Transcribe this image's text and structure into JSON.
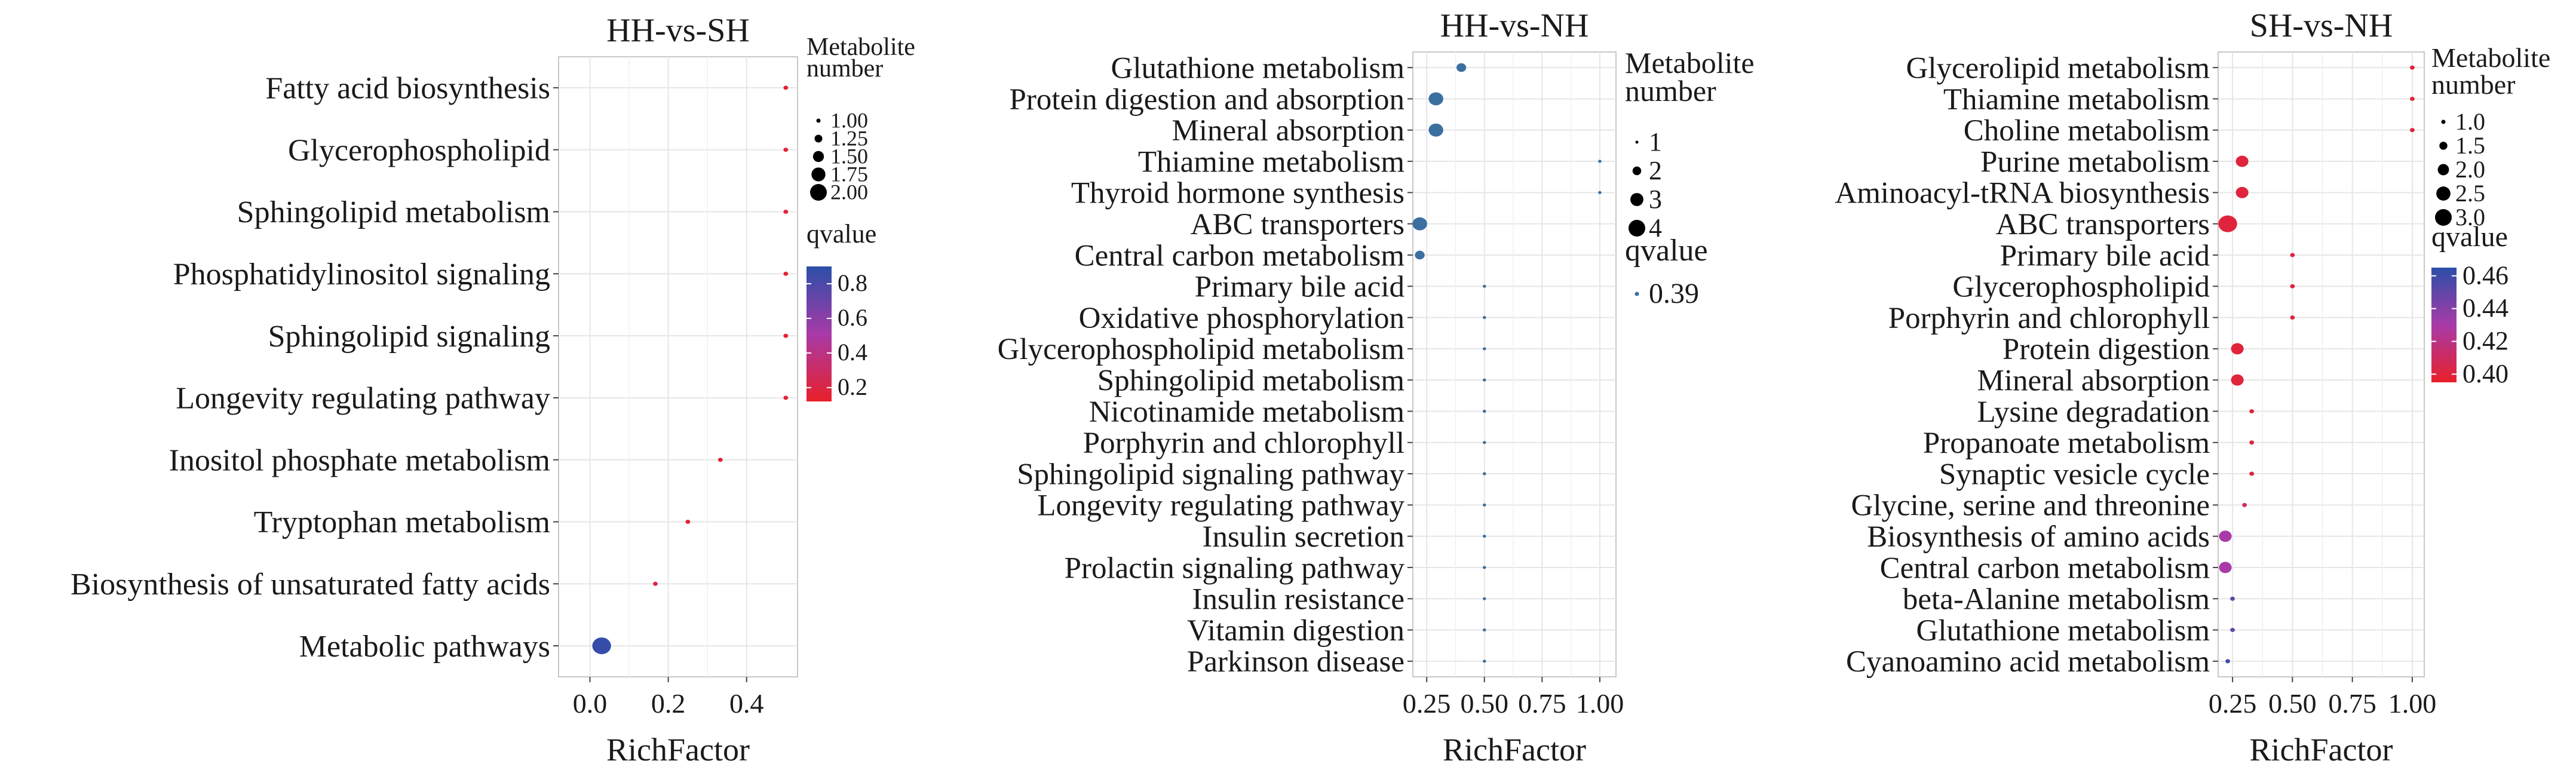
{
  "chart_data": [
    {
      "type": "scatter",
      "title": "HH-vs-SH",
      "xlabel": "RichFactor",
      "xlim": [
        -0.08,
        0.53
      ],
      "xticks": [
        0.0,
        0.2,
        0.4
      ],
      "xtick_labels": [
        "0.0",
        "0.2",
        "0.4"
      ],
      "grid": true,
      "legend_position": "right",
      "size_legend": {
        "title_lines": [
          "Metabolite",
          "number"
        ],
        "labels": [
          "1.00",
          "1.25",
          "1.50",
          "1.75",
          "2.00"
        ],
        "values": [
          1.0,
          1.25,
          1.5,
          1.75,
          2.0
        ]
      },
      "color_legend": {
        "title": "qvalue",
        "labels": [
          "0.8",
          "0.6",
          "0.4",
          "0.2"
        ],
        "values": [
          0.8,
          0.6,
          0.4,
          0.2
        ],
        "min": 0.12,
        "max": 0.9,
        "low_color": "#e8202a",
        "mid_color": "#a83aa8",
        "high_color": "#2b4fa8"
      },
      "categories": [
        "Fatty acid biosynthesis",
        "Glycerophospholipid",
        "Sphingolipid metabolism",
        "Phosphatidylinositol signaling",
        "Sphingolipid signaling",
        "Longevity regulating pathway",
        "Inositol phosphate metabolism",
        "Tryptophan metabolism",
        "Biosynthesis of unsaturated fatty acids",
        "Metabolic pathways"
      ],
      "points": [
        {
          "category": "Fatty acid biosynthesis",
          "x": 0.5,
          "size": 1,
          "q": 0.15
        },
        {
          "category": "Glycerophospholipid",
          "x": 0.5,
          "size": 1,
          "q": 0.15
        },
        {
          "category": "Sphingolipid metabolism",
          "x": 0.5,
          "size": 1,
          "q": 0.15
        },
        {
          "category": "Phosphatidylinositol signaling",
          "x": 0.5,
          "size": 1,
          "q": 0.15
        },
        {
          "category": "Sphingolipid signaling",
          "x": 0.5,
          "size": 1,
          "q": 0.15
        },
        {
          "category": "Longevity regulating pathway",
          "x": 0.5,
          "size": 1,
          "q": 0.15
        },
        {
          "category": "Inositol phosphate metabolism",
          "x": 0.333,
          "size": 1,
          "q": 0.16
        },
        {
          "category": "Tryptophan metabolism",
          "x": 0.25,
          "size": 1,
          "q": 0.17
        },
        {
          "category": "Biosynthesis of unsaturated fatty acids",
          "x": 0.167,
          "size": 1,
          "q": 0.2
        },
        {
          "category": "Metabolic pathways",
          "x": 0.03,
          "size": 2,
          "q": 0.87
        }
      ]
    },
    {
      "type": "scatter",
      "title": "HH-vs-NH",
      "xlabel": "RichFactor",
      "xlim": [
        0.19,
        1.07
      ],
      "xticks": [
        0.25,
        0.5,
        0.75,
        1.0
      ],
      "xtick_labels": [
        "0.25",
        "0.50",
        "0.75",
        "1.00"
      ],
      "grid": true,
      "legend_position": "right",
      "size_legend": {
        "title_lines": [
          "Metabolite",
          "number"
        ],
        "labels": [
          "1",
          "2",
          "3",
          "4"
        ],
        "values": [
          1,
          2,
          3,
          4
        ]
      },
      "color_legend": {
        "title": "qvalue",
        "labels": [
          "0.39"
        ],
        "values": [
          0.39
        ],
        "single_color": "#3b6fa0"
      },
      "categories": [
        "Glutathione metabolism",
        "Protein digestion and absorption",
        "Mineral absorption",
        "Thiamine metabolism",
        "Thyroid hormone synthesis",
        "ABC transporters",
        "Central carbon metabolism",
        "Primary bile acid",
        "Oxidative phosphorylation",
        "Glycerophospholipid metabolism",
        "Sphingolipid metabolism",
        "Nicotinamide metabolism",
        "Porphyrin and chlorophyll",
        "Sphingolipid signaling pathway",
        "Longevity regulating pathway",
        "Insulin secretion",
        "Prolactin signaling pathway",
        "Insulin resistance",
        "Vitamin digestion",
        "Parkinson disease"
      ],
      "points": [
        {
          "category": "Glutathione metabolism",
          "x": 0.4,
          "size": 2
        },
        {
          "category": "Protein digestion and absorption",
          "x": 0.29,
          "size": 3
        },
        {
          "category": "Mineral absorption",
          "x": 0.29,
          "size": 3
        },
        {
          "category": "Thiamine metabolism",
          "x": 1.0,
          "size": 1
        },
        {
          "category": "Thyroid hormone synthesis",
          "x": 1.0,
          "size": 1
        },
        {
          "category": "ABC transporters",
          "x": 0.22,
          "size": 3
        },
        {
          "category": "Central carbon metabolism",
          "x": 0.22,
          "size": 2
        },
        {
          "category": "Primary bile acid",
          "x": 0.5,
          "size": 1
        },
        {
          "category": "Oxidative phosphorylation",
          "x": 0.5,
          "size": 1
        },
        {
          "category": "Glycerophospholipid metabolism",
          "x": 0.5,
          "size": 1
        },
        {
          "category": "Sphingolipid metabolism",
          "x": 0.5,
          "size": 1
        },
        {
          "category": "Nicotinamide metabolism",
          "x": 0.5,
          "size": 1
        },
        {
          "category": "Porphyrin and chlorophyll",
          "x": 0.5,
          "size": 1
        },
        {
          "category": "Sphingolipid signaling pathway",
          "x": 0.5,
          "size": 1
        },
        {
          "category": "Longevity regulating pathway",
          "x": 0.5,
          "size": 1
        },
        {
          "category": "Insulin secretion",
          "x": 0.5,
          "size": 1
        },
        {
          "category": "Prolactin signaling pathway",
          "x": 0.5,
          "size": 1
        },
        {
          "category": "Insulin resistance",
          "x": 0.5,
          "size": 1
        },
        {
          "category": "Vitamin digestion",
          "x": 0.5,
          "size": 1
        },
        {
          "category": "Parkinson disease",
          "x": 0.5,
          "size": 1
        }
      ]
    },
    {
      "type": "scatter",
      "title": "SH-vs-NH",
      "xlabel": "RichFactor",
      "xlim": [
        0.19,
        1.05
      ],
      "xticks": [
        0.25,
        0.5,
        0.75,
        1.0
      ],
      "xtick_labels": [
        "0.25",
        "0.50",
        "0.75",
        "1.00"
      ],
      "grid": true,
      "legend_position": "right",
      "size_legend": {
        "title_lines": [
          "Metabolite",
          "number"
        ],
        "labels": [
          "1.0",
          "1.5",
          "2.0",
          "2.5",
          "3.0"
        ],
        "values": [
          1.0,
          1.5,
          2.0,
          2.5,
          3.0
        ]
      },
      "color_legend": {
        "title": "qvalue",
        "labels": [
          "0.46",
          "0.44",
          "0.42",
          "0.40"
        ],
        "values": [
          0.46,
          0.44,
          0.42,
          0.4
        ],
        "min": 0.395,
        "max": 0.465,
        "low_color": "#e8202a",
        "mid_color": "#a83aa8",
        "high_color": "#2b4fa8"
      },
      "categories": [
        "Glycerolipid metabolism",
        "Thiamine metabolism",
        "Choline metabolism",
        "Purine metabolism",
        "Aminoacyl-tRNA biosynthesis",
        "ABC transporters",
        "Primary bile acid",
        "Glycerophospholipid",
        "Porphyrin and chlorophyll",
        "Protein digestion",
        "Mineral absorption",
        "Lysine degradation",
        "Propanoate metabolism",
        "Synaptic vesicle cycle",
        "Glycine, serine and threonine",
        "Biosynthesis of amino acids",
        "Central carbon metabolism",
        "beta-Alanine metabolism",
        "Glutathione metabolism",
        "Cyanoamino acid metabolism"
      ],
      "points": [
        {
          "category": "Glycerolipid metabolism",
          "x": 1.0,
          "size": 1,
          "q": 0.4
        },
        {
          "category": "Thiamine metabolism",
          "x": 1.0,
          "size": 1,
          "q": 0.4
        },
        {
          "category": "Choline metabolism",
          "x": 1.0,
          "size": 1,
          "q": 0.4
        },
        {
          "category": "Purine metabolism",
          "x": 0.29,
          "size": 2,
          "q": 0.4
        },
        {
          "category": "Aminoacyl-tRNA biosynthesis",
          "x": 0.29,
          "size": 2,
          "q": 0.4
        },
        {
          "category": "ABC transporters",
          "x": 0.23,
          "size": 3,
          "q": 0.4
        },
        {
          "category": "Primary bile acid",
          "x": 0.5,
          "size": 1,
          "q": 0.4
        },
        {
          "category": "Glycerophospholipid",
          "x": 0.5,
          "size": 1,
          "q": 0.4
        },
        {
          "category": "Porphyrin and chlorophyll",
          "x": 0.5,
          "size": 1,
          "q": 0.4
        },
        {
          "category": "Protein digestion",
          "x": 0.27,
          "size": 2,
          "q": 0.4
        },
        {
          "category": "Mineral absorption",
          "x": 0.27,
          "size": 2,
          "q": 0.4
        },
        {
          "category": "Lysine degradation",
          "x": 0.33,
          "size": 1,
          "q": 0.4
        },
        {
          "category": "Propanoate metabolism",
          "x": 0.33,
          "size": 1,
          "q": 0.4
        },
        {
          "category": "Synaptic vesicle cycle",
          "x": 0.33,
          "size": 1,
          "q": 0.4
        },
        {
          "category": "Glycine, serine and threonine",
          "x": 0.3,
          "size": 1,
          "q": 0.41
        },
        {
          "category": "Biosynthesis of amino acids",
          "x": 0.22,
          "size": 2,
          "q": 0.43
        },
        {
          "category": "Central carbon metabolism",
          "x": 0.22,
          "size": 2,
          "q": 0.43
        },
        {
          "category": "beta-Alanine metabolism",
          "x": 0.25,
          "size": 1,
          "q": 0.45
        },
        {
          "category": "Glutathione metabolism",
          "x": 0.25,
          "size": 1,
          "q": 0.45
        },
        {
          "category": "Cyanoamino acid metabolism",
          "x": 0.23,
          "size": 1,
          "q": 0.46
        }
      ]
    }
  ]
}
